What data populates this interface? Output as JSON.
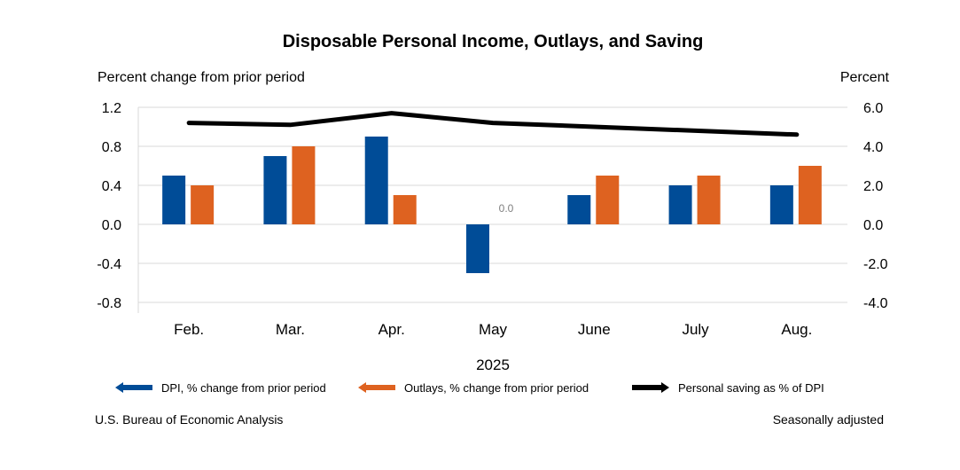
{
  "chart_data": {
    "type": "bar+line",
    "title": "Disposable Personal Income, Outlays, and Saving",
    "ylabel_left": "Percent change from prior period",
    "ylabel_right": "Percent",
    "xlabel": "2025",
    "categories": [
      "Feb.",
      "Mar.",
      "Apr.",
      "May",
      "June",
      "July",
      "Aug."
    ],
    "ylim_left": [
      -0.8,
      1.2
    ],
    "ylim_right": [
      -4.0,
      6.0
    ],
    "yticks_left": [
      "1.2",
      "0.8",
      "0.4",
      "0.0",
      "-0.4",
      "-0.8"
    ],
    "yticks_right": [
      "6.0",
      "4.0",
      "2.0",
      "0.0",
      "-2.0",
      "-4.0"
    ],
    "grid": true,
    "legend_placement": "bottom",
    "series": [
      {
        "name": "DPI, % change from prior period",
        "type": "bar",
        "axis": "left",
        "color": "#004c97",
        "values": [
          0.5,
          0.7,
          0.9,
          -0.5,
          0.3,
          0.4,
          0.4
        ]
      },
      {
        "name": "Outlays, % change from prior period",
        "type": "bar",
        "axis": "left",
        "color": "#de6220",
        "values": [
          0.4,
          0.8,
          0.3,
          0.0,
          0.5,
          0.5,
          0.6
        ]
      },
      {
        "name": "Personal saving as % of DPI",
        "type": "line",
        "axis": "right",
        "color": "#000000",
        "values": [
          5.2,
          5.1,
          5.7,
          5.2,
          5.0,
          4.8,
          4.6
        ]
      }
    ],
    "annotations": [
      {
        "category": "May",
        "series": "Outlays, % change from prior period",
        "text": "0.0"
      }
    ],
    "source": "U.S. Bureau of Economic Analysis",
    "note": "Seasonally adjusted"
  }
}
